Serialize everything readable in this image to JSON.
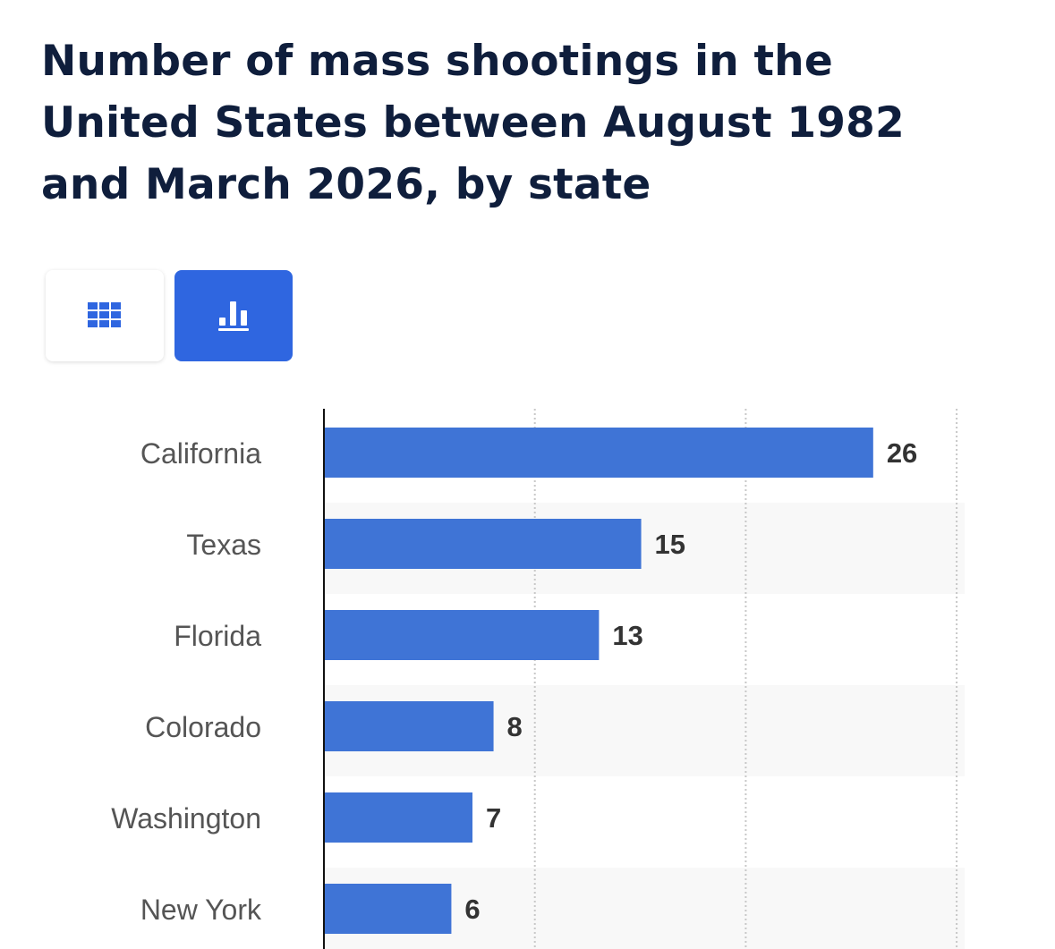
{
  "header": {
    "title": "Number of mass shootings in the United States between August 1982 and March 2026, by state"
  },
  "view_toggle": {
    "table_icon": "grid-table-icon",
    "chart_icon": "bar-chart-icon",
    "active": "chart"
  },
  "colors": {
    "bar": "#3f74d6",
    "title": "#0f1e3c",
    "accent": "#2f66e0",
    "band": "#f8f8f8",
    "grid": "#c8c8c8",
    "category_text": "#555555",
    "value_text": "#333333"
  },
  "chart_data": {
    "type": "bar",
    "orientation": "horizontal",
    "title": "Number of mass shootings in the United States between August 1982 and March 2026, by state",
    "xlabel": "",
    "ylabel": "",
    "categories": [
      "California",
      "Texas",
      "Florida",
      "Colorado",
      "Washington",
      "New York"
    ],
    "values": [
      26,
      15,
      13,
      8,
      7,
      6
    ],
    "xlim": [
      0,
      30
    ],
    "grid": true,
    "data_labels": true
  }
}
